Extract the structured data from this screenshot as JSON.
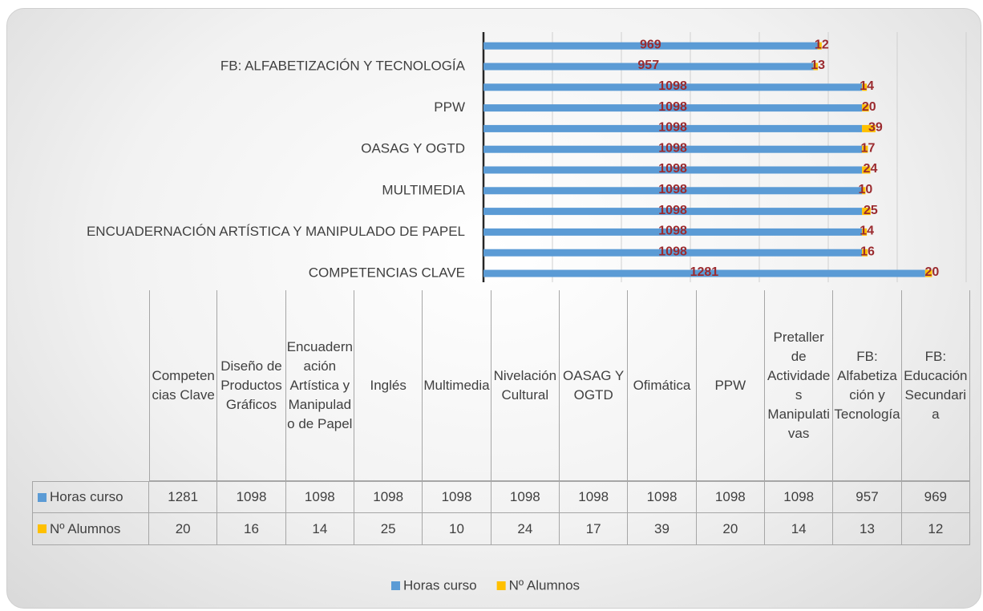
{
  "chart_data": {
    "type": "bar",
    "orientation": "horizontal",
    "stacked": true,
    "categories": [
      "COMPETENCIAS CLAVE",
      null,
      "ENCUADERNACIÓN ARTÍSTICA Y MANIPULADO DE PAPEL",
      null,
      "MULTIMEDIA",
      null,
      "OASAG Y OGTD",
      null,
      "PPW",
      null,
      "FB: ALFABETIZACIÓN Y TECNOLOGÍA",
      null
    ],
    "table_categories": [
      "Competencias Clave",
      "Diseño de Productos Gráficos",
      "Encuadernación Artística y Manipulado de Papel",
      "Inglés",
      "Multimedia",
      "Nivelación Cultural",
      "OASAG Y OGTD",
      "Ofimática",
      "PPW",
      "Pretaller de Actividades Manipulativas",
      "FB: Alfabetización y Tecnología",
      "FB: Educación Secundaria"
    ],
    "series": [
      {
        "name": "Horas curso",
        "color": "#5b9bd5",
        "values": [
          1281,
          1098,
          1098,
          1098,
          1098,
          1098,
          1098,
          1098,
          1098,
          1098,
          957,
          969
        ]
      },
      {
        "name": "Nº Alumnos",
        "color": "#ffc000",
        "values": [
          20,
          16,
          14,
          25,
          10,
          24,
          17,
          39,
          20,
          14,
          13,
          12
        ]
      }
    ],
    "xlim": [
      0,
      1400
    ],
    "xticks": [
      0,
      200,
      400,
      600,
      800,
      1000,
      1200,
      1400
    ],
    "grid": true,
    "legend": "bottom"
  }
}
